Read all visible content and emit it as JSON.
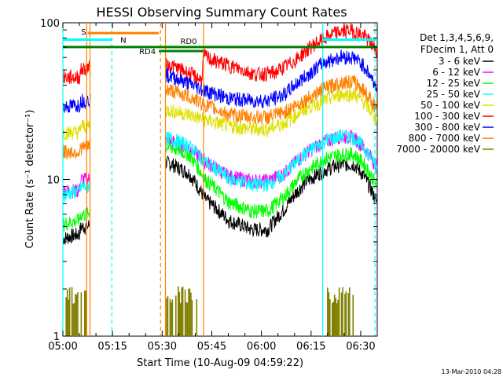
{
  "chart_data": {
    "type": "line",
    "title": "HESSI Observing Summary Count Rates",
    "xlabel": "Start Time (10-Aug-09 04:59:22)",
    "ylabel": "Count Rate (s⁻¹ detector⁻¹)",
    "yscale": "log",
    "ylim": [
      1,
      100
    ],
    "xlim_min": [
      0,
      95
    ],
    "x_unit": "minutes after 05:00 UT",
    "x_ticks": [
      {
        "t": 0,
        "label": "05:00"
      },
      {
        "t": 15,
        "label": "05:15"
      },
      {
        "t": 30,
        "label": "05:30"
      },
      {
        "t": 45,
        "label": "05:45"
      },
      {
        "t": 60,
        "label": "06:00"
      },
      {
        "t": 75,
        "label": "06:15"
      },
      {
        "t": 90,
        "label": "06:30"
      }
    ],
    "y_ticks": [
      {
        "v": 1,
        "label": "1"
      },
      {
        "v": 10,
        "label": "10"
      },
      {
        "v": 100,
        "label": "100"
      }
    ],
    "legend_header": [
      "Det 1,3,4,5,6,9,",
      "FDecim 1, Att 0"
    ],
    "legend_position": "right",
    "footer_date": "13-Mar-2010 04:28",
    "series": [
      {
        "name": "3 - 6 keV",
        "color": "#000000",
        "points": [
          [
            0,
            4.2
          ],
          [
            5,
            4.5
          ],
          [
            5.5,
            5
          ],
          [
            7.5,
            5
          ],
          [
            30,
            13
          ],
          [
            33,
            12.5
          ],
          [
            38,
            11
          ],
          [
            43,
            7.5
          ],
          [
            50,
            5.5
          ],
          [
            57,
            4.8
          ],
          [
            62,
            4.8
          ],
          [
            67,
            6.5
          ],
          [
            73,
            9.5
          ],
          [
            79,
            11.5
          ],
          [
            84,
            12.5
          ],
          [
            88,
            12.5
          ],
          [
            91,
            10.5
          ],
          [
            95,
            7
          ]
        ]
      },
      {
        "name": "6 - 12 keV",
        "color": "#ff00ff",
        "points": [
          [
            0,
            8.5
          ],
          [
            5,
            8.5
          ],
          [
            5.5,
            10
          ],
          [
            7.5,
            10
          ],
          [
            30,
            18
          ],
          [
            33,
            17.5
          ],
          [
            38,
            16
          ],
          [
            43,
            13
          ],
          [
            50,
            10.5
          ],
          [
            57,
            9.8
          ],
          [
            62,
            9.8
          ],
          [
            67,
            11
          ],
          [
            73,
            14.5
          ],
          [
            79,
            17.5
          ],
          [
            84,
            19
          ],
          [
            88,
            18.5
          ],
          [
            91,
            16
          ],
          [
            95,
            12
          ]
        ]
      },
      {
        "name": "12 - 25 keV",
        "color": "#00ff00",
        "points": [
          [
            0,
            5.2
          ],
          [
            5,
            5.5
          ],
          [
            5.5,
            6
          ],
          [
            7.5,
            6
          ],
          [
            30,
            16.5
          ],
          [
            33,
            16
          ],
          [
            38,
            14.5
          ],
          [
            43,
            10
          ],
          [
            50,
            7.2
          ],
          [
            57,
            6.3
          ],
          [
            62,
            6.3
          ],
          [
            67,
            7.8
          ],
          [
            73,
            11
          ],
          [
            79,
            13.5
          ],
          [
            84,
            14.5
          ],
          [
            88,
            14.5
          ],
          [
            91,
            12.5
          ],
          [
            95,
            9
          ]
        ]
      },
      {
        "name": "25 - 50 keV",
        "color": "#00ffff",
        "points": [
          [
            0,
            8
          ],
          [
            5,
            8.5
          ],
          [
            5.5,
            9
          ],
          [
            7.5,
            9
          ],
          [
            30,
            18.5
          ],
          [
            33,
            18
          ],
          [
            38,
            16.5
          ],
          [
            43,
            13
          ],
          [
            50,
            10.2
          ],
          [
            57,
            9.3
          ],
          [
            62,
            9.3
          ],
          [
            67,
            10.8
          ],
          [
            73,
            14.5
          ],
          [
            79,
            17.5
          ],
          [
            84,
            19
          ],
          [
            88,
            18.5
          ],
          [
            91,
            16
          ],
          [
            95,
            12
          ]
        ]
      },
      {
        "name": "50 - 100 keV",
        "color": "#e0e000",
        "points": [
          [
            0,
            20
          ],
          [
            5,
            20
          ],
          [
            5.5,
            22
          ],
          [
            7.5,
            22
          ],
          [
            30,
            28
          ],
          [
            33,
            27.5
          ],
          [
            38,
            26
          ],
          [
            43,
            24
          ],
          [
            50,
            22
          ],
          [
            57,
            21
          ],
          [
            62,
            21
          ],
          [
            67,
            23
          ],
          [
            73,
            28
          ],
          [
            79,
            32
          ],
          [
            84,
            35
          ],
          [
            88,
            35
          ],
          [
            91,
            31
          ],
          [
            95,
            24
          ]
        ]
      },
      {
        "name": "100 - 300 keV",
        "color": "#ff0000",
        "points": [
          [
            0,
            45
          ],
          [
            5,
            45
          ],
          [
            5.5,
            50
          ],
          [
            7.5,
            52
          ],
          [
            30,
            55
          ],
          [
            33,
            53
          ],
          [
            38,
            48
          ],
          [
            42,
            43
          ],
          [
            42.5,
            62
          ],
          [
            45,
            58
          ],
          [
            52,
            52
          ],
          [
            58,
            47
          ],
          [
            64,
            48
          ],
          [
            70,
            57
          ],
          [
            76,
            73
          ],
          [
            82,
            86
          ],
          [
            87,
            90
          ],
          [
            91,
            83
          ],
          [
            95,
            66
          ]
        ]
      },
      {
        "name": "300 - 800 keV",
        "color": "#0000ff",
        "points": [
          [
            0,
            29
          ],
          [
            5,
            30
          ],
          [
            5.5,
            32
          ],
          [
            7.5,
            32
          ],
          [
            30,
            47
          ],
          [
            33,
            45.5
          ],
          [
            38,
            41
          ],
          [
            43,
            37
          ],
          [
            50,
            33
          ],
          [
            57,
            32
          ],
          [
            62,
            32
          ],
          [
            67,
            35
          ],
          [
            73,
            45
          ],
          [
            79,
            56
          ],
          [
            84,
            61
          ],
          [
            88,
            60
          ],
          [
            91,
            53
          ],
          [
            95,
            38
          ]
        ]
      },
      {
        "name": "800 - 7000 keV",
        "color": "#ff8000",
        "points": [
          [
            0,
            15
          ],
          [
            5,
            15
          ],
          [
            5.5,
            16
          ],
          [
            7.5,
            16
          ],
          [
            30,
            38
          ],
          [
            33,
            37
          ],
          [
            38,
            34
          ],
          [
            43,
            30
          ],
          [
            50,
            26
          ],
          [
            57,
            25
          ],
          [
            62,
            25
          ],
          [
            67,
            27
          ],
          [
            73,
            32
          ],
          [
            79,
            38
          ],
          [
            84,
            42
          ],
          [
            88,
            42
          ],
          [
            91,
            37
          ],
          [
            95,
            28
          ]
        ]
      },
      {
        "name": "7000 - 20000 keV",
        "color": "#808000",
        "points": []
      }
    ],
    "vlines": [
      {
        "t": 0,
        "color": "#00ffff",
        "style": "solid"
      },
      {
        "t": 7.2,
        "color": "#ff8000",
        "style": "solid"
      },
      {
        "t": 8.2,
        "color": "#ff8000",
        "style": "solid"
      },
      {
        "t": 14.8,
        "color": "#00ffff",
        "style": "dashed"
      },
      {
        "t": 29.5,
        "color": "#ff8000",
        "style": "dashed"
      },
      {
        "t": 31,
        "color": "#ff8000",
        "style": "solid"
      },
      {
        "t": 42.5,
        "color": "#ff8000",
        "style": "solid"
      },
      {
        "t": 78.5,
        "color": "#00ffff",
        "style": "solid"
      },
      {
        "t": 94.3,
        "color": "#00ffff",
        "style": "dashed"
      }
    ],
    "flag_bars": [
      {
        "label": "S",
        "color": "#ff8000",
        "t0": 7.5,
        "t1": 29,
        "level": 86,
        "label_side": "start"
      },
      {
        "label": "N",
        "color": "#00ffff",
        "t0": 0,
        "t1": 15,
        "level": 78,
        "label_side": "end"
      },
      {
        "label": "N",
        "color": "#00ffff",
        "t0": 78.5,
        "t1": 95,
        "level": 78,
        "label_side": "none"
      },
      {
        "label": "RD0",
        "color": "#008000",
        "t0": 0,
        "t1": 95,
        "level": 70,
        "label_side": "above-start"
      },
      {
        "label": "RD4",
        "color": "#008000",
        "t0": 29,
        "t1": 42.5,
        "level": 66,
        "label_side": "left"
      }
    ],
    "bursts": [
      {
        "color": "#808000",
        "t0": 1,
        "t1": 7,
        "level": 2
      },
      {
        "color": "#808000",
        "t0": 31,
        "t1": 41,
        "level": 2
      },
      {
        "color": "#808000",
        "t0": 80,
        "t1": 88,
        "level": 2
      }
    ]
  }
}
